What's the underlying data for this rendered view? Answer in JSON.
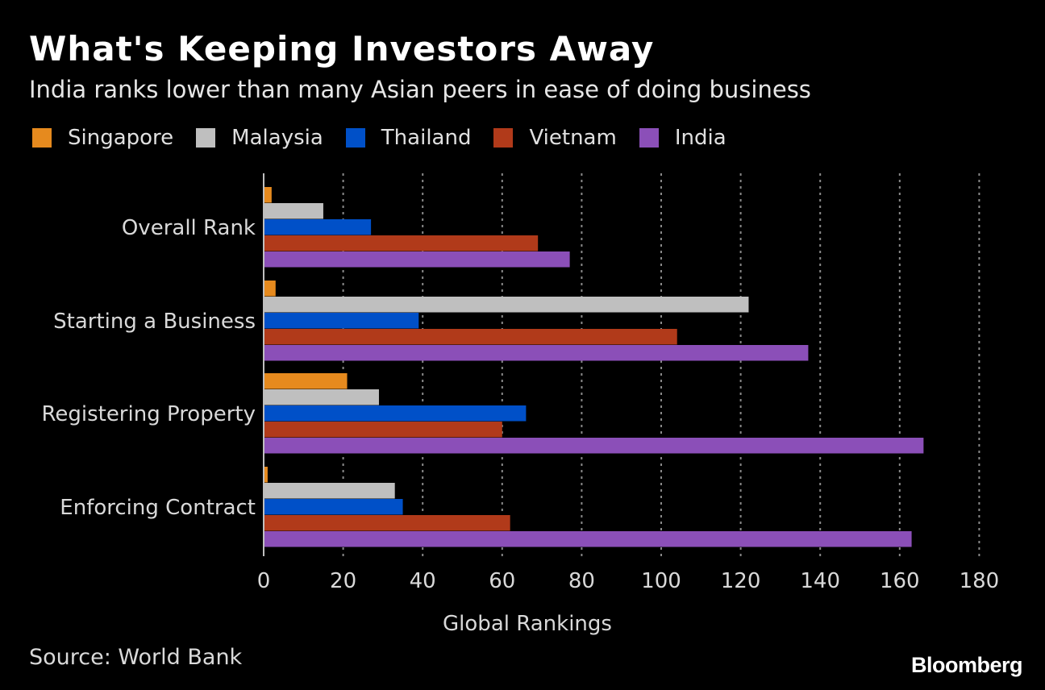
{
  "header": {
    "title": "What's Keeping Investors Away",
    "subtitle": "India ranks lower than many Asian peers in ease of doing business"
  },
  "footer": {
    "source": "Source: World Bank",
    "brand": "Bloomberg"
  },
  "chart_data": {
    "type": "bar",
    "orientation": "horizontal",
    "categories": [
      "Overall Rank",
      "Starting a Business",
      "Registering Property",
      "Enforcing Contract"
    ],
    "series": [
      {
        "name": "Singapore",
        "color": "#e68a1e",
        "values": [
          2,
          3,
          21,
          1
        ]
      },
      {
        "name": "Malaysia",
        "color": "#bfbfbf",
        "values": [
          15,
          122,
          29,
          33
        ]
      },
      {
        "name": "Thailand",
        "color": "#0050c8",
        "values": [
          27,
          39,
          66,
          35
        ]
      },
      {
        "name": "Vietnam",
        "color": "#b13a1a",
        "values": [
          69,
          104,
          60,
          62
        ]
      },
      {
        "name": "India",
        "color": "#8b4fb8",
        "values": [
          77,
          137,
          166,
          163
        ]
      }
    ],
    "xlabel": "Global Rankings",
    "ylabel": "",
    "xlim": [
      0,
      180
    ],
    "xticks": [
      0,
      20,
      40,
      60,
      80,
      100,
      120,
      140,
      160,
      180
    ],
    "grid": "vertical dotted",
    "legend": "top"
  }
}
